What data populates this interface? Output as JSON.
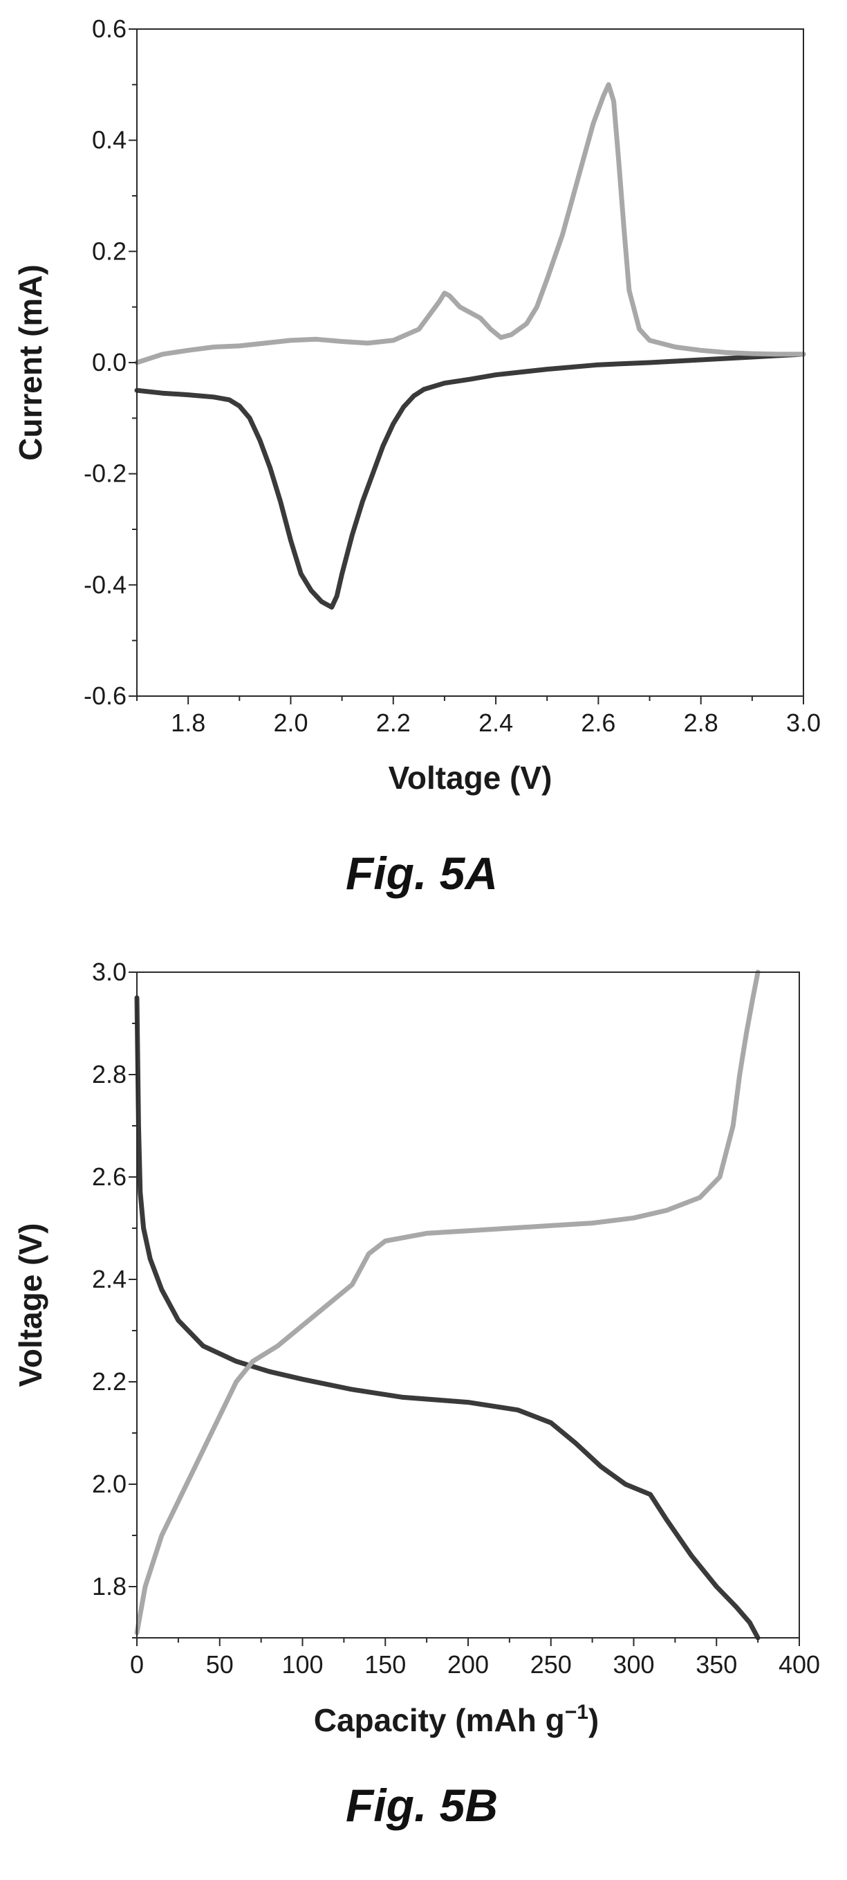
{
  "chart_data": [
    {
      "type": "line",
      "caption": "Fig. 5A",
      "xlabel": "Voltage (V)",
      "ylabel": "Current (mA)",
      "xlim": [
        1.7,
        3.0
      ],
      "ylim": [
        -0.6,
        0.6
      ],
      "xticks": [
        "1.8",
        "2.0",
        "2.2",
        "2.4",
        "2.6",
        "2.8",
        "3.0"
      ],
      "yticks": [
        "-0.6",
        "-0.4",
        "-0.2",
        "0.0",
        "0.2",
        "0.4",
        "0.6"
      ],
      "grid": false,
      "legend": "none",
      "series": [
        {
          "color": "#3a3a3a",
          "x": [
            1.7,
            1.75,
            1.8,
            1.85,
            1.88,
            1.9,
            1.92,
            1.94,
            1.96,
            1.98,
            2.0,
            2.02,
            2.04,
            2.06,
            2.07,
            2.08,
            2.09,
            2.1,
            2.12,
            2.14,
            2.16,
            2.18,
            2.2,
            2.22,
            2.24,
            2.26,
            2.3,
            2.35,
            2.4,
            2.5,
            2.6,
            2.7,
            2.8,
            2.9,
            3.0
          ],
          "y": [
            -0.05,
            -0.055,
            -0.058,
            -0.062,
            -0.067,
            -0.078,
            -0.1,
            -0.14,
            -0.19,
            -0.25,
            -0.32,
            -0.38,
            -0.41,
            -0.43,
            -0.435,
            -0.44,
            -0.42,
            -0.38,
            -0.31,
            -0.25,
            -0.2,
            -0.15,
            -0.11,
            -0.08,
            -0.06,
            -0.048,
            -0.037,
            -0.03,
            -0.022,
            -0.012,
            -0.004,
            0.0,
            0.005,
            0.01,
            0.015
          ]
        },
        {
          "color": "#a8a8a8",
          "x": [
            1.7,
            1.75,
            1.8,
            1.85,
            1.9,
            1.95,
            2.0,
            2.05,
            2.1,
            2.15,
            2.2,
            2.25,
            2.27,
            2.29,
            2.3,
            2.31,
            2.33,
            2.35,
            2.37,
            2.39,
            2.41,
            2.43,
            2.46,
            2.48,
            2.5,
            2.53,
            2.56,
            2.59,
            2.61,
            2.62,
            2.63,
            2.64,
            2.65,
            2.66,
            2.68,
            2.7,
            2.75,
            2.8,
            2.85,
            2.9,
            2.95,
            3.0
          ],
          "y": [
            0.0,
            0.015,
            0.022,
            0.028,
            0.03,
            0.035,
            0.04,
            0.042,
            0.038,
            0.035,
            0.04,
            0.06,
            0.085,
            0.11,
            0.125,
            0.12,
            0.1,
            0.09,
            0.08,
            0.06,
            0.045,
            0.05,
            0.07,
            0.1,
            0.15,
            0.23,
            0.33,
            0.43,
            0.48,
            0.5,
            0.47,
            0.36,
            0.24,
            0.13,
            0.06,
            0.04,
            0.028,
            0.022,
            0.018,
            0.016,
            0.015,
            0.015
          ]
        }
      ]
    },
    {
      "type": "line",
      "caption": "Fig. 5B",
      "xlabel": "Capacity (mAh g",
      "xlabel_sup": "−1",
      "xlabel_end": ")",
      "ylabel": "Voltage (V)",
      "xlim": [
        0,
        400
      ],
      "ylim": [
        1.7,
        3.0
      ],
      "xticks": [
        "0",
        "50",
        "100",
        "150",
        "200",
        "250",
        "300",
        "350",
        "400"
      ],
      "yticks": [
        "1.8",
        "2.0",
        "2.2",
        "2.4",
        "2.6",
        "2.8",
        "3.0"
      ],
      "grid": false,
      "legend": "none",
      "series": [
        {
          "color": "#3a3a3a",
          "x": [
            0,
            1,
            2,
            4,
            8,
            15,
            25,
            40,
            60,
            80,
            100,
            130,
            160,
            200,
            230,
            250,
            265,
            280,
            295,
            310,
            320,
            335,
            350,
            362,
            370,
            375
          ],
          "y": [
            2.95,
            2.7,
            2.57,
            2.5,
            2.44,
            2.38,
            2.32,
            2.27,
            2.24,
            2.22,
            2.205,
            2.185,
            2.17,
            2.16,
            2.145,
            2.12,
            2.08,
            2.035,
            2.0,
            1.98,
            1.93,
            1.86,
            1.8,
            1.76,
            1.73,
            1.7
          ]
        },
        {
          "color": "#a8a8a8",
          "x": [
            0,
            5,
            15,
            30,
            45,
            60,
            70,
            85,
            100,
            115,
            130,
            140,
            150,
            175,
            200,
            225,
            250,
            275,
            300,
            320,
            340,
            352,
            360,
            364,
            368,
            372,
            375
          ],
          "y": [
            1.71,
            1.8,
            1.9,
            2.0,
            2.1,
            2.2,
            2.24,
            2.27,
            2.31,
            2.35,
            2.39,
            2.45,
            2.475,
            2.49,
            2.495,
            2.5,
            2.505,
            2.51,
            2.52,
            2.535,
            2.56,
            2.6,
            2.7,
            2.8,
            2.88,
            2.95,
            3.0
          ]
        }
      ]
    }
  ]
}
